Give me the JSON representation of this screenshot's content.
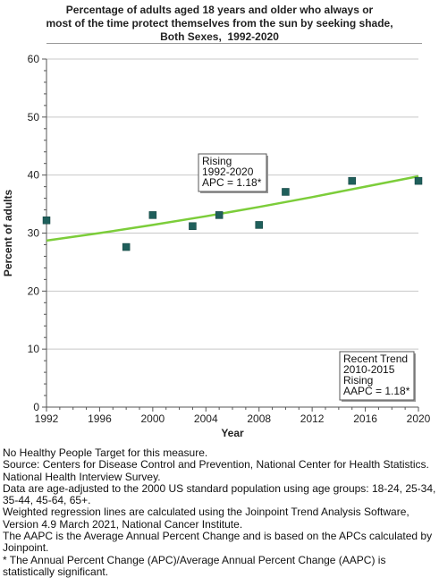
{
  "title_lines": [
    "Percentage of adults aged 18 years and older who always or",
    "most of the time protect themselves from the sun by seeking shade,",
    "Both Sexes,  1992-2020"
  ],
  "chart_data": {
    "type": "scatter",
    "title": "Percentage of adults aged 18 years and older who always or most of the time protect themselves from the sun by seeking shade, Both Sexes, 1992-2020",
    "xlabel": "Year",
    "ylabel": "Percent of adults",
    "xlim": [
      1992,
      2020
    ],
    "ylim": [
      0,
      60
    ],
    "xticks": [
      1992,
      1996,
      2000,
      2004,
      2008,
      2012,
      2016,
      2020
    ],
    "yticks": [
      0,
      10,
      20,
      30,
      40,
      50,
      60
    ],
    "grid": true,
    "series": [
      {
        "type": "scatter",
        "color": "#1f5f5b",
        "x": [
          1992,
          1998,
          2000,
          2003,
          2005,
          2008,
          2010,
          2015,
          2020
        ],
        "y": [
          32.2,
          27.6,
          33.1,
          31.2,
          33.1,
          31.4,
          37.1,
          39.0,
          39.0
        ]
      },
      {
        "type": "line",
        "color": "#7ccd3a",
        "x": [
          1992,
          1996,
          2000,
          2004,
          2008,
          2012,
          2016,
          2020
        ],
        "y": [
          28.7,
          30.0,
          31.4,
          32.9,
          34.5,
          36.2,
          38.0,
          39.8
        ]
      }
    ],
    "annotations": [
      {
        "lines": [
          "Rising",
          "1992-2020",
          "APC =  1.18*"
        ]
      },
      {
        "lines": [
          "Recent Trend",
          "2010-2015",
          "Rising",
          "AAPC =  1.18*"
        ]
      }
    ]
  },
  "footnotes": [
    "No Healthy People Target for this measure.",
    "Source: Centers for Disease Control and Prevention, National Center for Health Statistics. National Health Interview Survey.",
    "Data are age-adjusted to the 2000 US standard population using age groups: 18-24, 25-34, 35-44, 45-64, 65+.",
    "Weighted regression lines are calculated using the Joinpoint Trend Analysis Software, Version 4.9 March 2021, National Cancer Institute.",
    "The AAPC is the Average Annual Percent Change and is based on the APCs calculated by Joinpoint.",
    "* The Annual Percent Change (APC)/Average Annual Percent Change (AAPC) is statistically significant."
  ]
}
